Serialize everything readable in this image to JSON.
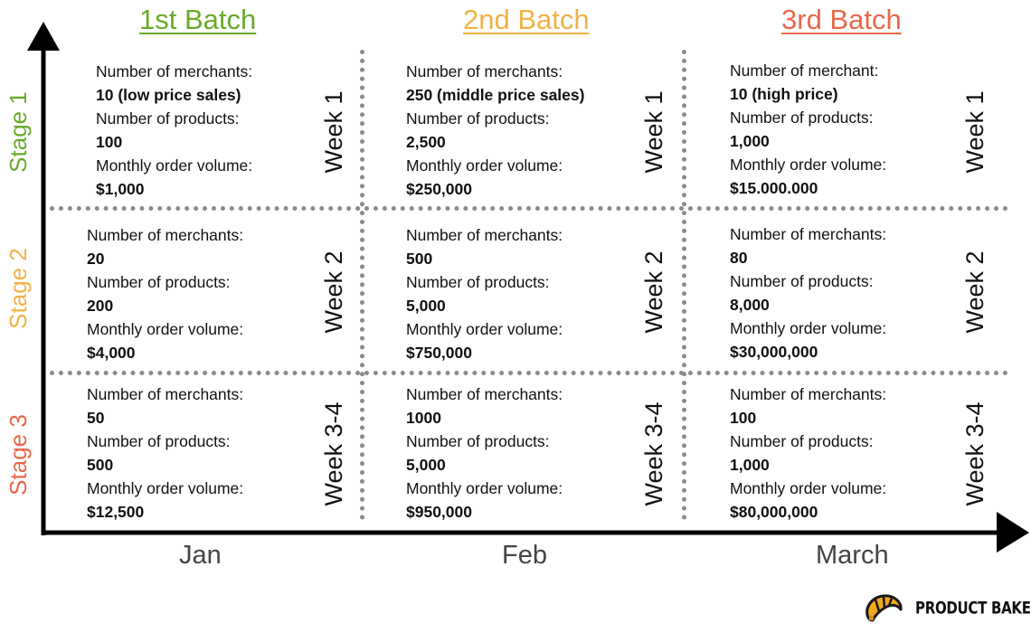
{
  "colors": {
    "batch1": "#6aaa2a",
    "batch2": "#f0b247",
    "batch3": "#e8684a"
  },
  "batches": [
    "1st Batch",
    "2nd Batch",
    "3rd Batch"
  ],
  "stages": [
    "Stage 1",
    "Stage 2",
    "Stage 3"
  ],
  "months": [
    "Jan",
    "Feb",
    "March"
  ],
  "weeks": [
    "Week 1",
    "Week 2",
    "Week 3-4"
  ],
  "cells": [
    [
      {
        "l1": "Number of merchants:",
        "v1": "10 (low price sales)",
        "l2": "Number of products:",
        "v2": "100",
        "l3": "Monthly order volume:",
        "v3": "$1,000"
      },
      {
        "l1": "Number of merchants:",
        "v1": "250 (middle price sales)",
        "l2": "Number of products:",
        "v2": "2,500",
        "l3": "Monthly order volume:",
        "v3": "$250,000"
      },
      {
        "l1": "Number of merchant:",
        "v1": "10 (high price)",
        "l2": "Number of products:",
        "v2": "1,000",
        "l3": "Monthly order volume:",
        "v3": "$15.000.000"
      }
    ],
    [
      {
        "l1": "Number of merchants:",
        "v1": "20",
        "l2": "Number of products:",
        "v2": "200",
        "l3": "Monthly order volume:",
        "v3": "$4,000"
      },
      {
        "l1": "Number of merchants:",
        "v1": "500",
        "l2": "Number of products:",
        "v2": "5,000",
        "l3": "Monthly order volume:",
        "v3": "$750,000"
      },
      {
        "l1": "Number of merchants:",
        "v1": "80",
        "l2": "Number of products:",
        "v2": "8,000",
        "l3": "Monthly order volume:",
        "v3": "$30,000,000"
      }
    ],
    [
      {
        "l1": "Number of merchants:",
        "v1": "50",
        "l2": "Number of products:",
        "v2": "500",
        "l3": "Monthly order volume:",
        "v3": "$12,500"
      },
      {
        "l1": "Number of merchants:",
        "v1": "1000",
        "l2": "Number of products:",
        "v2": "5,000",
        "l3": "Monthly order volume:",
        "v3": "$950,000"
      },
      {
        "l1": "Number of merchants:",
        "v1": "100",
        "l2": "Number of products:",
        "v2": "1,000",
        "l3": "Monthly order volume:",
        "v3": "$80,000,000"
      }
    ]
  ],
  "brand": {
    "name": "PRODUCT BAKERY",
    "logo_icon": "croissant-icon"
  }
}
